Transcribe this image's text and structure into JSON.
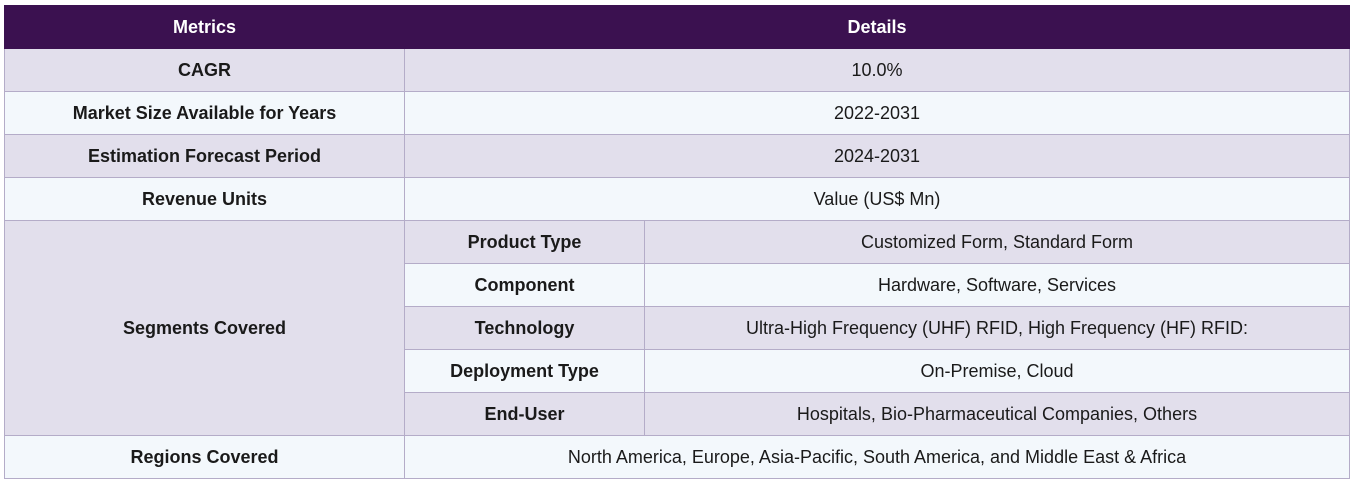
{
  "header": {
    "metrics": "Metrics",
    "details": "Details"
  },
  "rows": [
    {
      "label": "CAGR",
      "value": "10.0%"
    },
    {
      "label": "Market Size Available for Years",
      "value": "2022-2031"
    },
    {
      "label": "Estimation Forecast Period",
      "value": "2024-2031"
    },
    {
      "label": "Revenue Units",
      "value": "Value (US$ Mn)"
    }
  ],
  "segments": {
    "label": "Segments Covered",
    "items": [
      {
        "label": "Product Type",
        "value": "Customized Form, Standard Form"
      },
      {
        "label": "Component",
        "value": "Hardware, Software, Services"
      },
      {
        "label": "Technology",
        "value": "Ultra-High Frequency (UHF) RFID, High Frequency (HF) RFID:"
      },
      {
        "label": "Deployment Type",
        "value": "On-Premise, Cloud"
      },
      {
        "label": "End-User",
        "value": "Hospitals, Bio-Pharmaceutical Companies, Others"
      }
    ]
  },
  "regions": {
    "label": "Regions Covered",
    "value": "North America, Europe, Asia-Pacific, South America, and Middle East & Africa"
  }
}
